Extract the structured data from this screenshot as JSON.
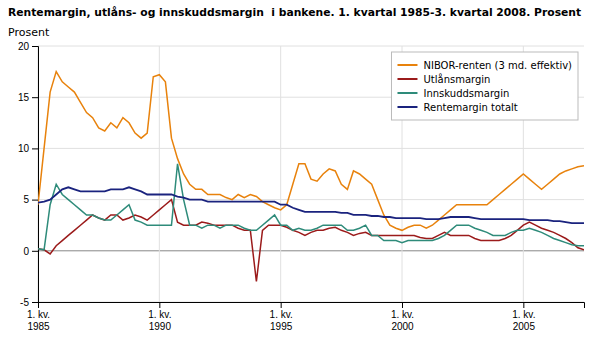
{
  "chart_data": {
    "type": "line",
    "title": "Rentemargin, utlåns- og innskuddsmargin  i bankene. 1. kvartal 1985-3. kvartal 2008. Prosent",
    "y_label": "Prosent",
    "categories": [
      "1. kv.\n1985",
      null,
      null,
      null,
      null,
      null,
      null,
      null,
      null,
      null,
      null,
      null,
      null,
      null,
      null,
      null,
      null,
      null,
      null,
      null,
      "1. kv.\n1990",
      null,
      null,
      null,
      null,
      null,
      null,
      null,
      null,
      null,
      null,
      null,
      null,
      null,
      null,
      null,
      null,
      null,
      null,
      null,
      "1. kv.\n1995",
      null,
      null,
      null,
      null,
      null,
      null,
      null,
      null,
      null,
      null,
      null,
      null,
      null,
      null,
      null,
      null,
      null,
      null,
      null,
      "1. kv.\n2000",
      null,
      null,
      null,
      null,
      null,
      null,
      null,
      null,
      null,
      null,
      null,
      null,
      null,
      null,
      null,
      null,
      null,
      null,
      null,
      "1. kv.\n2005",
      null,
      null,
      null,
      null,
      null,
      null,
      null,
      null,
      null,
      null
    ],
    "series": [
      {
        "name": "NIBOR-renten (3 md. effektiv)",
        "color": "#E8820C",
        "values": [
          4.5,
          10.0,
          15.5,
          17.5,
          16.5,
          16.0,
          15.5,
          14.5,
          13.5,
          13.0,
          12.0,
          11.7,
          12.5,
          12.0,
          13.0,
          12.5,
          11.5,
          11.0,
          11.5,
          17.0,
          17.2,
          16.5,
          11.0,
          9.0,
          7.5,
          6.5,
          6.0,
          6.0,
          5.5,
          5.5,
          5.5,
          5.2,
          5.0,
          5.5,
          5.2,
          5.5,
          5.3,
          4.8,
          4.5,
          4.2,
          4.0,
          4.5,
          6.5,
          8.5,
          8.5,
          7.0,
          6.8,
          7.5,
          8.0,
          7.8,
          6.5,
          6.0,
          7.8,
          7.5,
          7.0,
          6.5,
          5.0,
          3.5,
          2.5,
          2.2,
          2.0,
          2.3,
          2.5,
          2.5,
          2.2,
          2.5,
          3.0,
          3.5,
          4.0,
          4.5,
          4.5,
          4.5,
          4.5,
          4.5,
          4.5,
          5.0,
          5.5,
          6.0,
          6.5,
          7.0,
          7.5,
          7.0,
          6.5,
          6.0,
          6.5,
          7.0,
          7.5,
          7.8,
          8.0,
          8.2,
          8.3
        ]
      },
      {
        "name": "Utlånsmargin",
        "color": "#9B1B1B",
        "values": [
          0.2,
          0.1,
          -0.3,
          0.5,
          1.0,
          1.5,
          2.0,
          2.5,
          3.0,
          3.5,
          3.2,
          3.0,
          3.5,
          3.5,
          3.0,
          3.2,
          3.5,
          3.3,
          3.0,
          3.5,
          4.0,
          4.5,
          5.0,
          2.8,
          2.5,
          2.5,
          2.5,
          2.8,
          2.7,
          2.5,
          2.5,
          2.5,
          2.5,
          2.2,
          2.0,
          2.0,
          -3.0,
          2.0,
          2.5,
          2.5,
          2.5,
          2.3,
          2.0,
          1.8,
          1.5,
          1.8,
          2.0,
          2.0,
          2.2,
          2.3,
          2.0,
          1.8,
          1.5,
          1.7,
          1.8,
          1.5,
          1.5,
          1.5,
          1.5,
          1.5,
          1.5,
          1.5,
          1.5,
          1.3,
          1.2,
          1.2,
          1.5,
          1.8,
          1.5,
          1.5,
          1.5,
          1.5,
          1.2,
          1.0,
          1.0,
          1.0,
          1.0,
          1.2,
          1.5,
          2.0,
          2.5,
          2.8,
          2.5,
          2.2,
          2.0,
          1.8,
          1.5,
          1.2,
          0.8,
          0.3,
          0.1
        ]
      },
      {
        "name": "Innskuddsmargin",
        "color": "#2E8B7A",
        "values": [
          0.2,
          0.1,
          4.5,
          6.5,
          5.5,
          5.0,
          4.5,
          4.0,
          3.5,
          3.5,
          3.2,
          3.0,
          3.0,
          3.5,
          4.0,
          4.5,
          3.0,
          2.8,
          2.5,
          2.5,
          2.5,
          2.5,
          2.5,
          8.5,
          5.0,
          2.5,
          2.5,
          2.2,
          2.5,
          2.5,
          2.2,
          2.5,
          2.5,
          2.5,
          2.2,
          2.0,
          2.0,
          2.5,
          3.0,
          3.5,
          2.5,
          2.5,
          2.0,
          2.2,
          2.0,
          2.0,
          2.2,
          2.5,
          2.5,
          2.5,
          2.5,
          2.0,
          2.0,
          2.2,
          2.5,
          1.5,
          1.5,
          1.0,
          1.0,
          1.0,
          0.8,
          1.0,
          1.0,
          1.0,
          1.0,
          1.0,
          1.2,
          1.5,
          2.0,
          2.5,
          2.5,
          2.5,
          2.2,
          2.0,
          1.8,
          1.5,
          1.5,
          1.5,
          1.8,
          2.0,
          2.0,
          2.2,
          2.0,
          1.8,
          1.5,
          1.2,
          1.0,
          0.8,
          0.6,
          0.5,
          0.5
        ]
      },
      {
        "name": "Rentemargin totalt",
        "color": "#1A237E",
        "values": [
          4.7,
          4.8,
          5.0,
          5.5,
          6.0,
          6.2,
          6.0,
          5.8,
          5.8,
          5.8,
          5.8,
          5.8,
          6.0,
          6.0,
          6.0,
          6.2,
          6.0,
          5.8,
          5.5,
          5.5,
          5.5,
          5.5,
          5.5,
          5.3,
          5.2,
          5.0,
          5.0,
          5.0,
          4.8,
          4.8,
          4.8,
          4.8,
          4.8,
          4.8,
          4.8,
          4.8,
          4.8,
          4.8,
          4.8,
          4.8,
          4.5,
          4.5,
          4.2,
          4.0,
          3.8,
          3.8,
          3.8,
          3.8,
          3.8,
          3.8,
          3.7,
          3.7,
          3.5,
          3.5,
          3.5,
          3.4,
          3.4,
          3.3,
          3.3,
          3.2,
          3.2,
          3.2,
          3.2,
          3.2,
          3.1,
          3.1,
          3.1,
          3.2,
          3.3,
          3.3,
          3.3,
          3.3,
          3.2,
          3.1,
          3.1,
          3.1,
          3.1,
          3.1,
          3.1,
          3.1,
          3.1,
          3.0,
          3.0,
          3.0,
          3.0,
          2.9,
          2.9,
          2.8,
          2.7,
          2.7,
          2.7
        ]
      }
    ],
    "ylim": [
      -5,
      20
    ],
    "yticks": [
      -5,
      0,
      5,
      10,
      15,
      20
    ],
    "grid": true,
    "legend": "upper right"
  }
}
